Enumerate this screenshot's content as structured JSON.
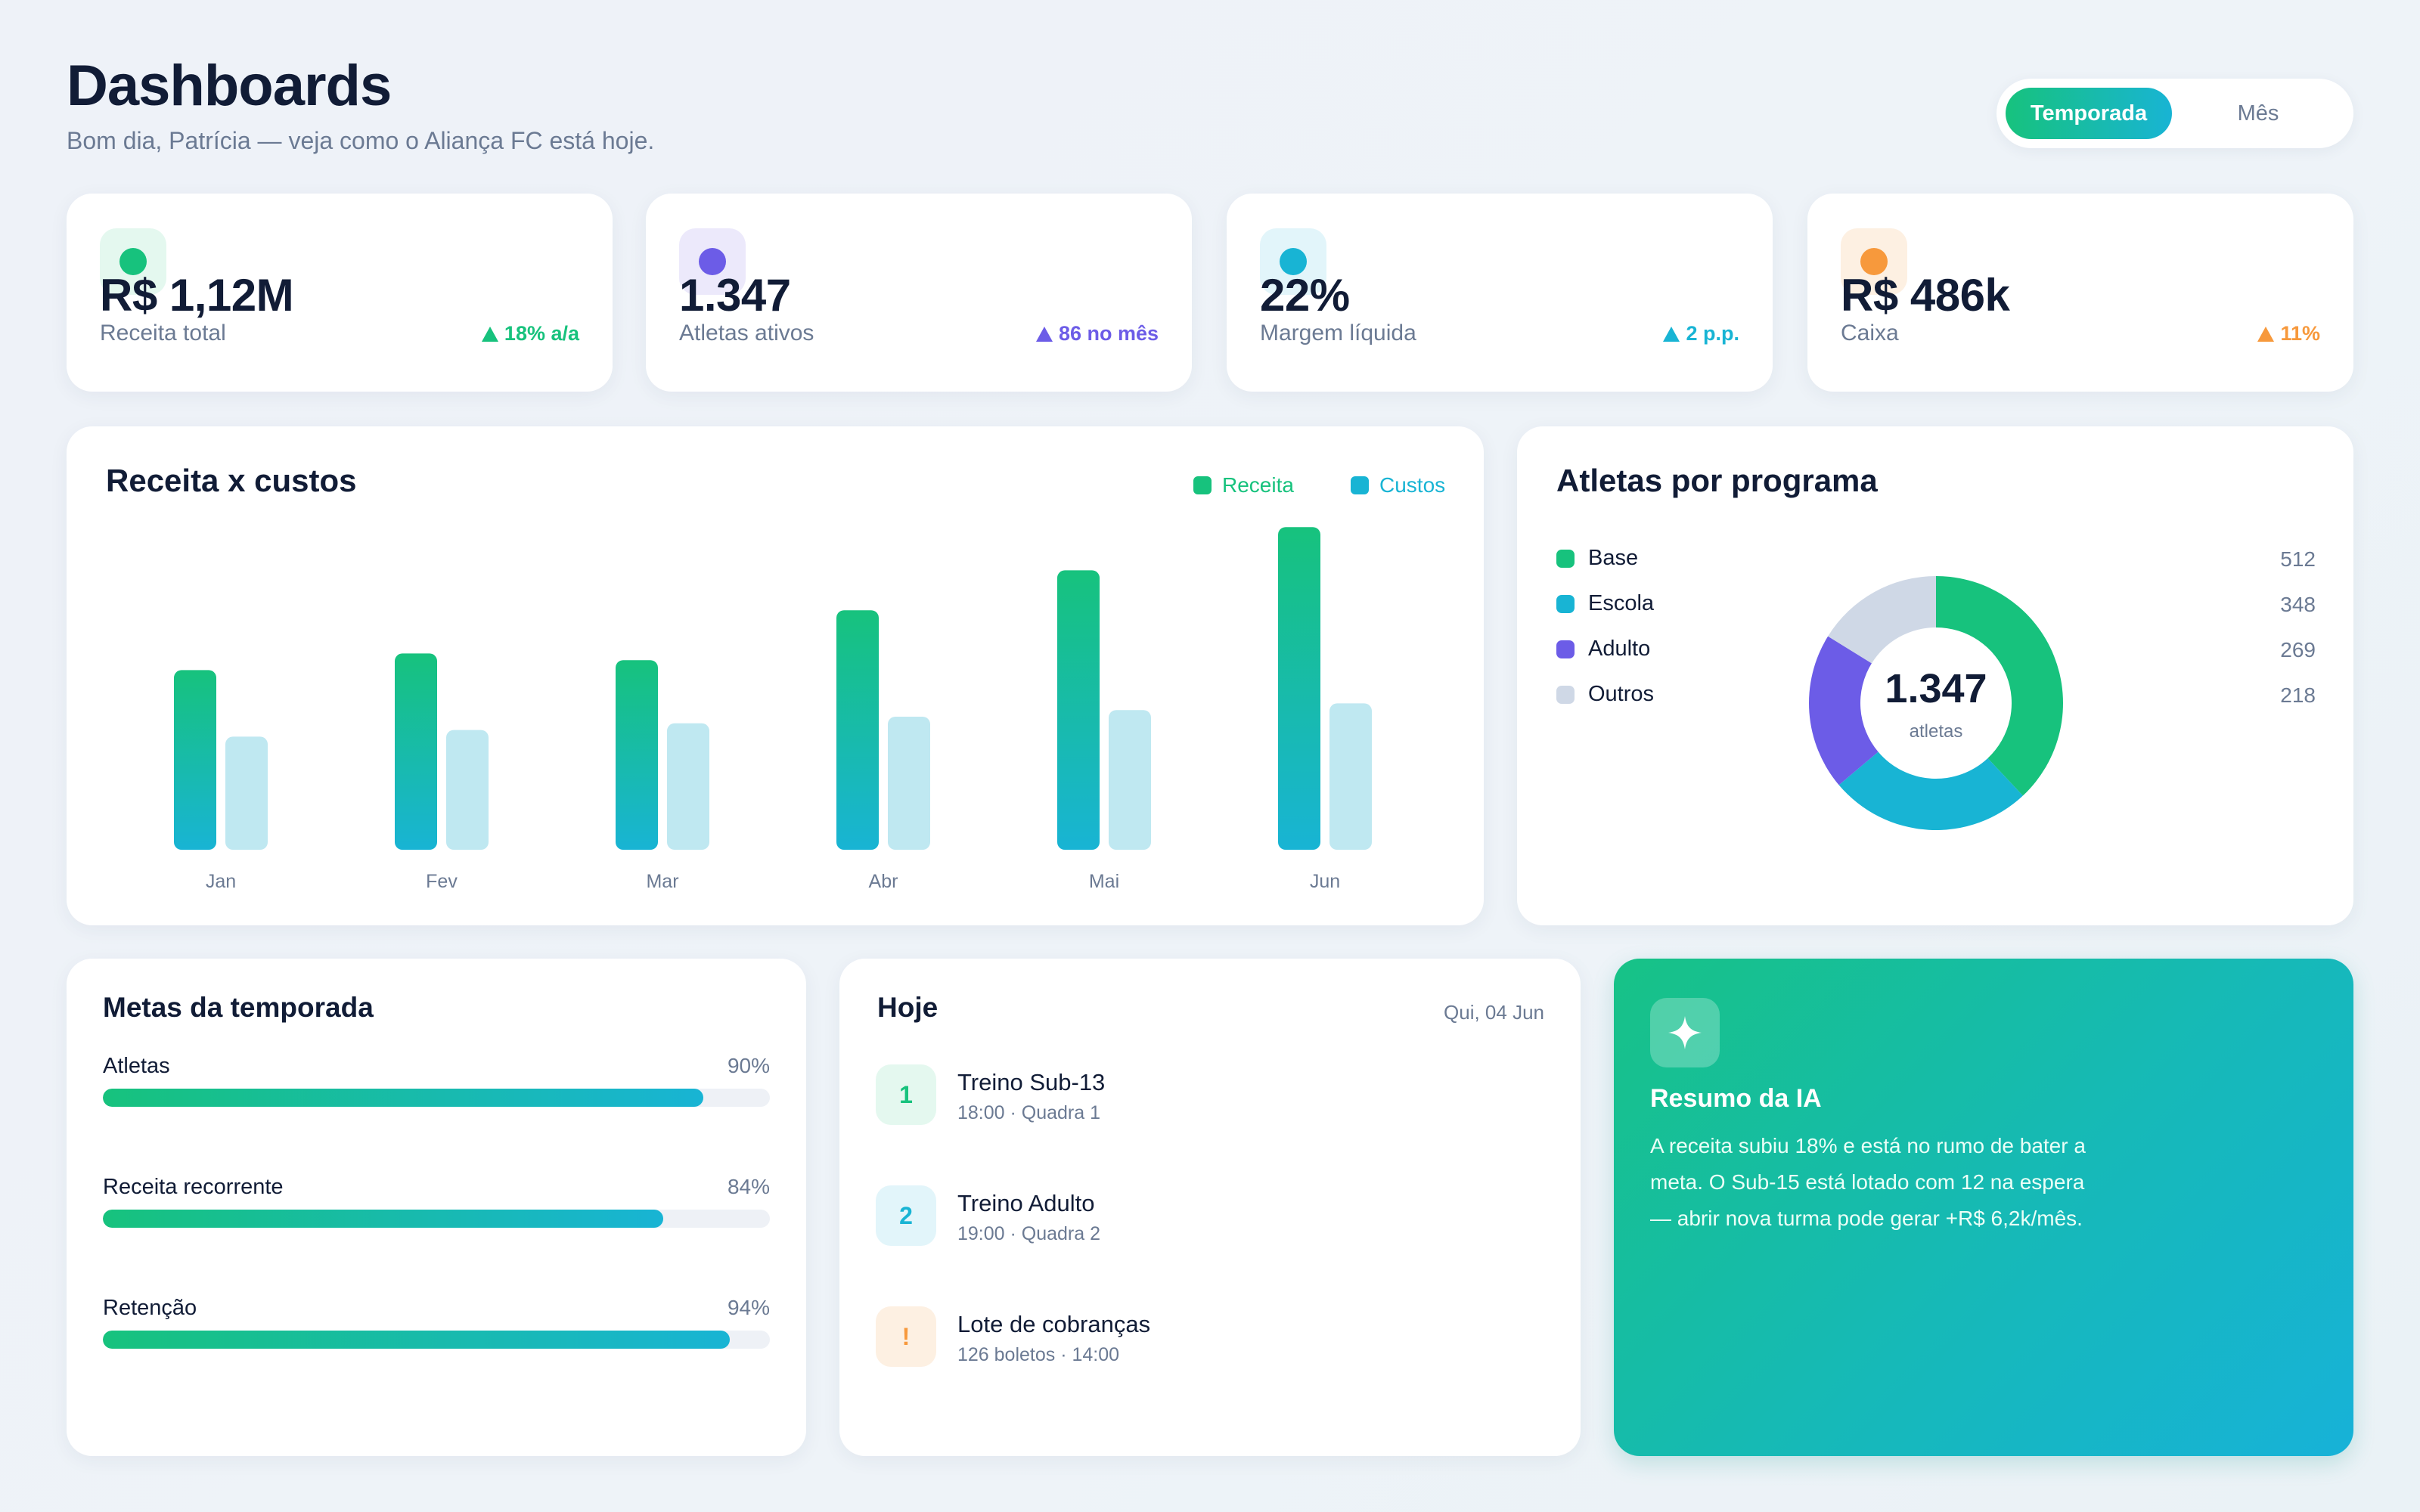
{
  "header": {
    "title": "Dashboards",
    "subtitle": "Bom dia, Patrícia — veja como o Aliança FC está hoje.",
    "segment": {
      "active": "Temporada",
      "inactive": "Mês"
    }
  },
  "kpis": [
    {
      "value": "R$ 1,12M",
      "label": "Receita total",
      "delta": "18% a/a",
      "color": "#17c27d",
      "bg": "#e4f8ef"
    },
    {
      "value": "1.347",
      "label": "Atletas ativos",
      "delta": "86 no mês",
      "color": "#6c5ce7",
      "bg": "#ece9fb"
    },
    {
      "value": "22%",
      "label": "Margem líquida",
      "delta": "2 p.p.",
      "color": "#18b4d4",
      "bg": "#e2f5fa"
    },
    {
      "value": "R$ 486k",
      "label": "Caixa",
      "delta": "11%",
      "color": "#f7993c",
      "bg": "#fdf0e2"
    }
  ],
  "revenue_chart": {
    "title": "Receita x custos",
    "legend": {
      "receita": "Receita",
      "custos": "Custos"
    },
    "colors": {
      "receita": "#17c27d",
      "custos": "#18b4d4",
      "custos_bar": "#bfe8f1"
    }
  },
  "chart_data": {
    "type": "bar",
    "categories": [
      "Jan",
      "Fev",
      "Mar",
      "Abr",
      "Mai",
      "Jun"
    ],
    "series": [
      {
        "name": "Receita",
        "values": [
          54,
          59,
          57,
          72,
          84,
          97
        ]
      },
      {
        "name": "Custos",
        "values": [
          34,
          36,
          38,
          40,
          42,
          44
        ]
      }
    ],
    "title": "Receita x custos",
    "xlabel": "",
    "ylabel": "",
    "ylim": [
      0,
      100
    ],
    "grid": false,
    "legend": "top-right"
  },
  "programs": {
    "title": "Atletas por programa",
    "center_value": "1.347",
    "center_label": "atletas",
    "items": [
      {
        "name": "Base",
        "count": "512",
        "value": 512,
        "color": "#17c27d"
      },
      {
        "name": "Escola",
        "count": "348",
        "value": 348,
        "color": "#18b4d4"
      },
      {
        "name": "Adulto",
        "count": "269",
        "value": 269,
        "color": "#6c5ce7"
      },
      {
        "name": "Outros",
        "count": "218",
        "value": 218,
        "color": "#cfd8e6"
      }
    ]
  },
  "goals": {
    "title": "Metas da temporada",
    "items": [
      {
        "name": "Atletas",
        "pct": "90%",
        "fraction": 0.9
      },
      {
        "name": "Receita recorrente",
        "pct": "84%",
        "fraction": 0.84
      },
      {
        "name": "Retenção",
        "pct": "94%",
        "fraction": 0.94
      }
    ]
  },
  "today": {
    "title": "Hoje",
    "date": "Qui, 04 Jun",
    "items": [
      {
        "badge": "1",
        "title": "Treino Sub-13",
        "sub": "18:00 · Quadra 1",
        "color": "#17c27d",
        "bg": "#e4f8ef"
      },
      {
        "badge": "2",
        "title": "Treino Adulto",
        "sub": "19:00 · Quadra 2",
        "color": "#18b4d4",
        "bg": "#e2f5fa"
      },
      {
        "badge": "!",
        "title": "Lote de cobranças",
        "sub": "126 boletos · 14:00",
        "color": "#f7993c",
        "bg": "#fdf0e2"
      }
    ]
  },
  "ai": {
    "icon": "sparkle-icon",
    "title": "Resumo da IA",
    "text": "A receita subiu 18% e está no rumo de bater a meta. O Sub-15 está lotado com 12 na espera — abrir nova turma pode gerar +R$ 6,2k/mês."
  }
}
